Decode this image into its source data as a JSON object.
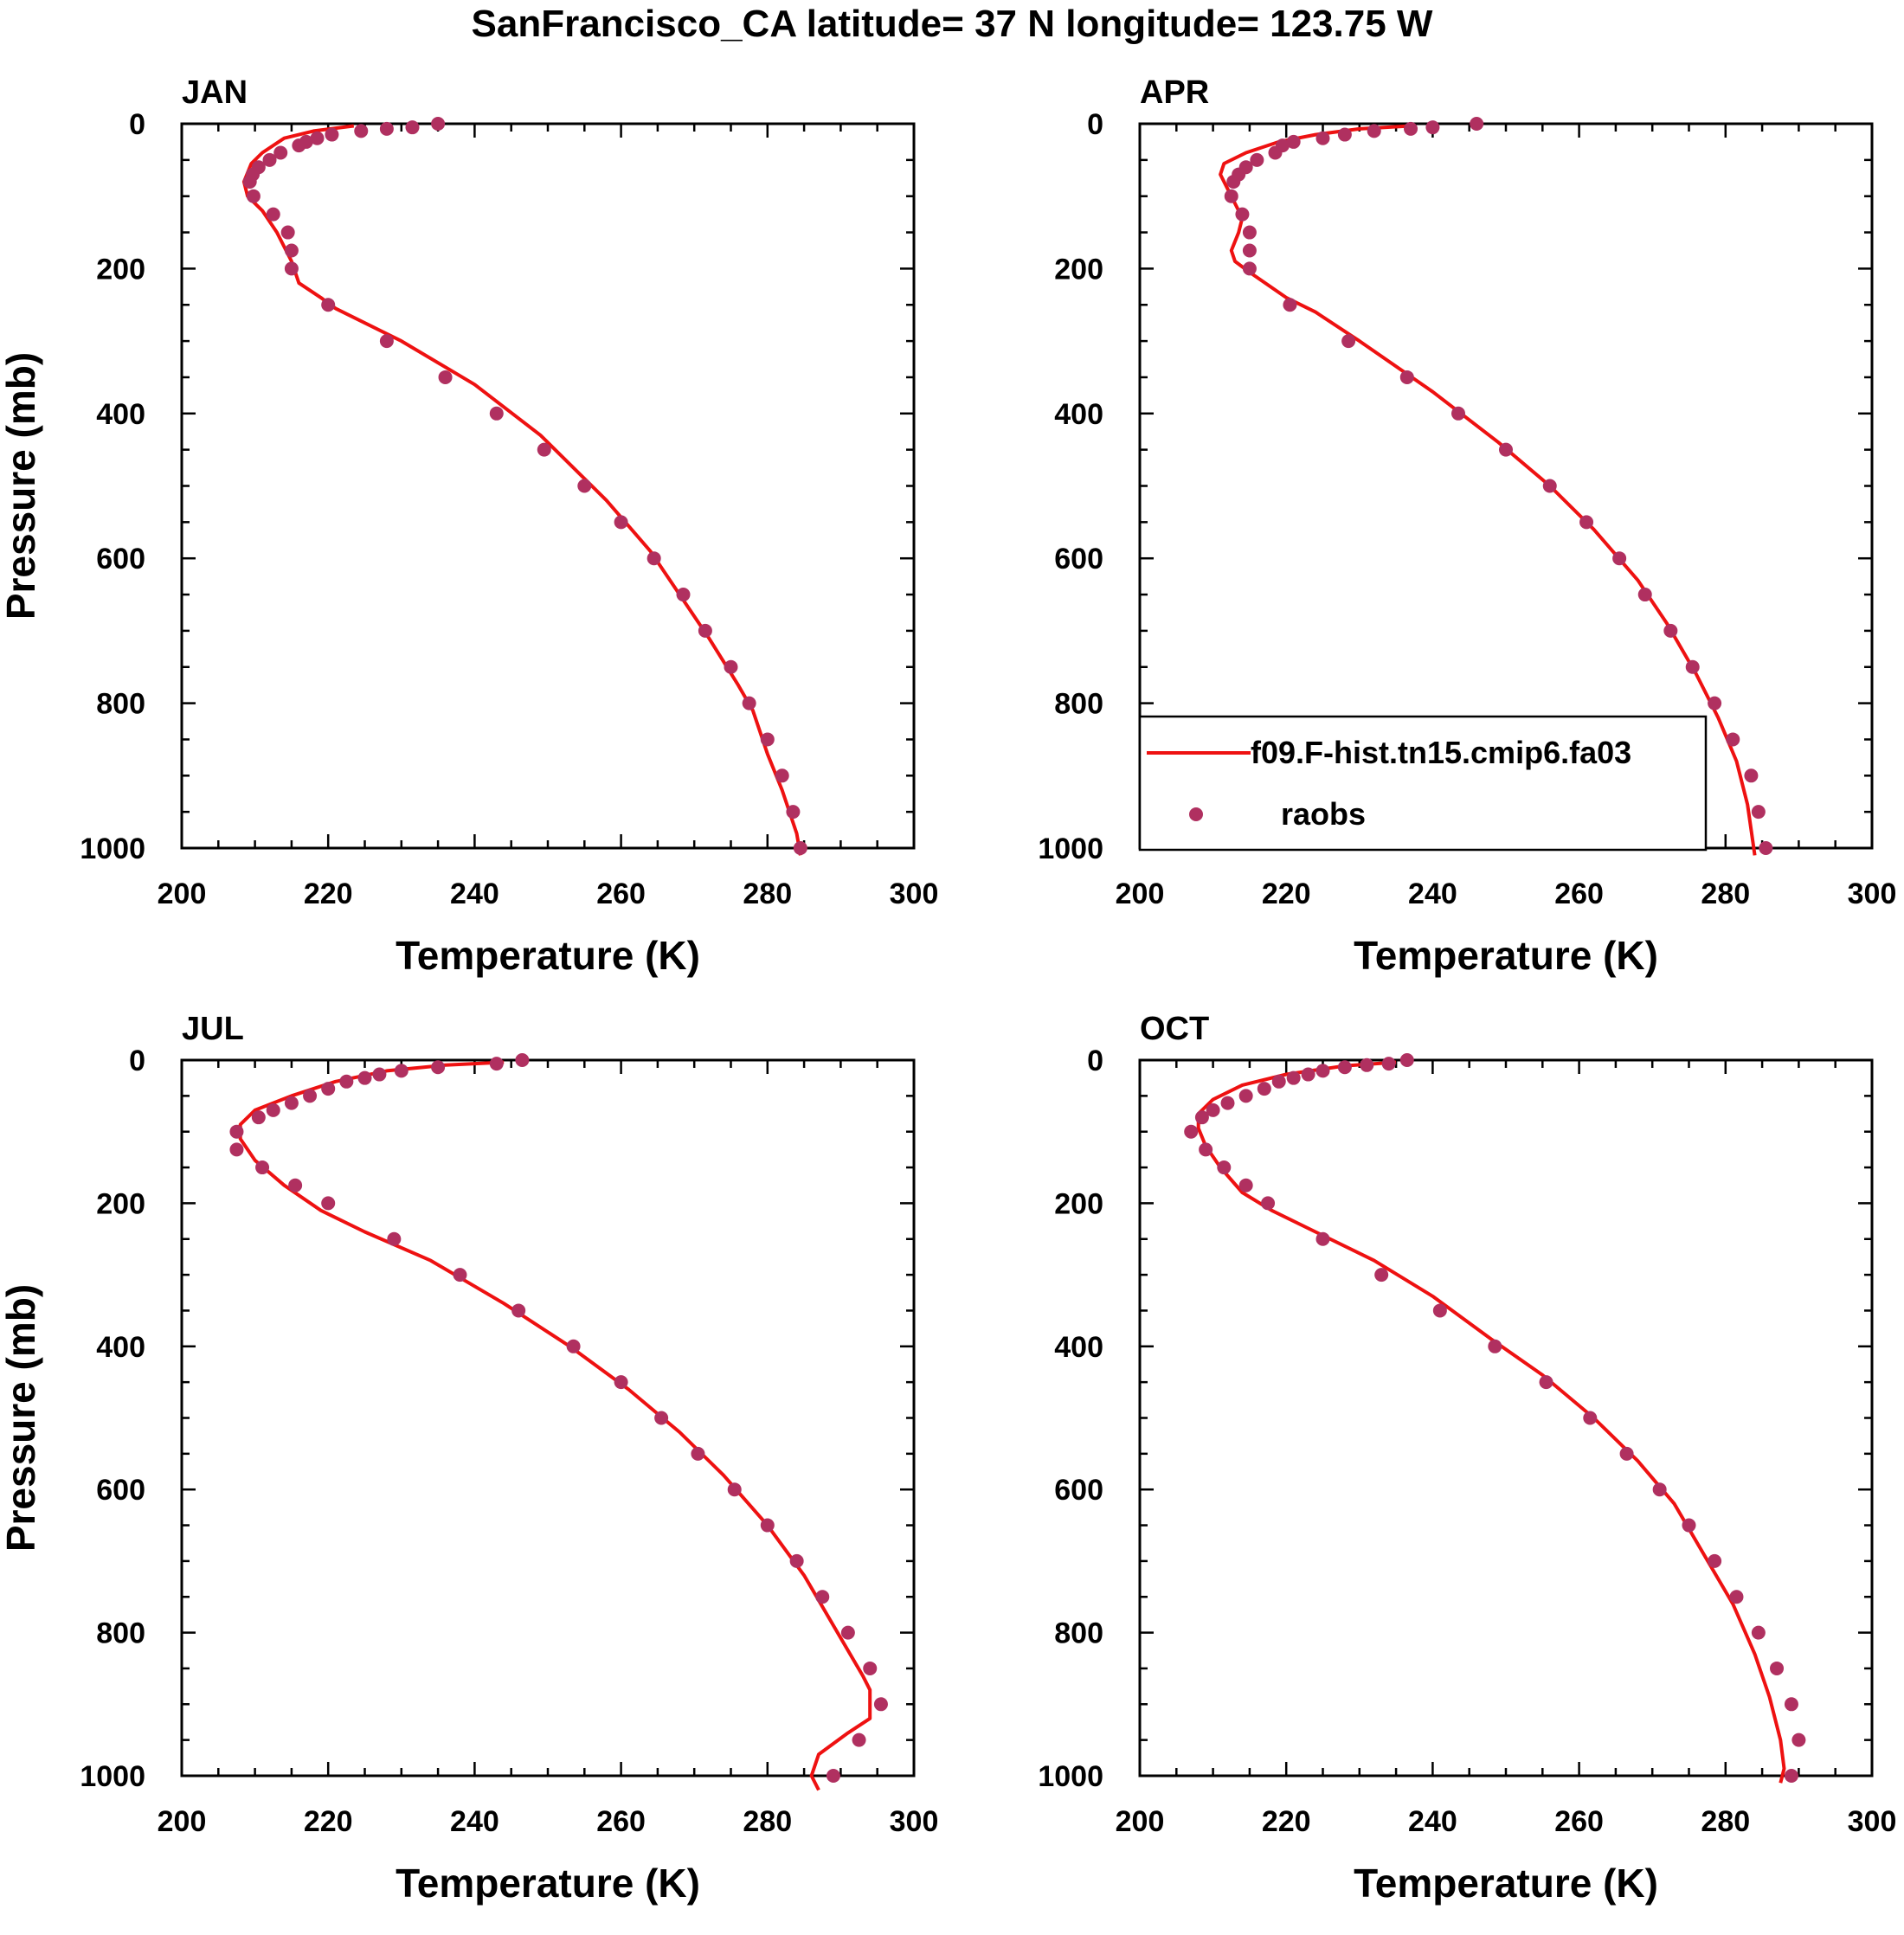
{
  "title": "SanFrancisco_CA  latitude= 37 N longitude= 123.75 W",
  "colors": {
    "model_line": "#ee1111",
    "obs_marker": "#b03060",
    "axes": "#000000"
  },
  "legend": {
    "placement": "inside APR panel, lower-left",
    "entries": [
      {
        "label": "f09.F-hist.tn15.cmip6.fa03",
        "symbol": "line"
      },
      {
        "label": "raobs",
        "symbol": "dot"
      }
    ]
  },
  "chart_data": [
    {
      "type": "line",
      "panel_title": "JAN",
      "xlabel": "Temperature (K)",
      "ylabel": "Pressure (mb)",
      "xlim": [
        200,
        300
      ],
      "ylim": [
        1000,
        0
      ],
      "y_inverted": true,
      "x_ticks": [
        "200",
        "220",
        "240",
        "260",
        "280",
        "300"
      ],
      "y_ticks": [
        "0",
        "200",
        "400",
        "600",
        "800",
        "1000"
      ],
      "series": [
        {
          "name": "f09.F-hist.tn15.cmip6.fa03",
          "kind": "line",
          "points": [
            [
              223.5,
              3
            ],
            [
              218,
              10
            ],
            [
              214,
              20
            ],
            [
              211,
              40
            ],
            [
              209.5,
              55
            ],
            [
              208.5,
              80
            ],
            [
              209,
              100
            ],
            [
              211,
              120
            ],
            [
              213,
              150
            ],
            [
              215,
              190
            ],
            [
              216,
              220
            ],
            [
              219,
              240
            ],
            [
              221,
              255
            ],
            [
              230,
              300
            ],
            [
              240,
              360
            ],
            [
              249,
              430
            ],
            [
              258,
              520
            ],
            [
              264,
              590
            ],
            [
              268,
              650
            ],
            [
              272,
              710
            ],
            [
              276,
              775
            ],
            [
              278,
              810
            ],
            [
              280,
              870
            ],
            [
              282,
              920
            ],
            [
              284,
              980
            ],
            [
              284.5,
              1010
            ]
          ]
        },
        {
          "name": "raobs",
          "kind": "scatter",
          "points": [
            [
              235,
              0
            ],
            [
              231.5,
              5
            ],
            [
              228,
              7
            ],
            [
              224.5,
              10
            ],
            [
              220.5,
              15
            ],
            [
              218.5,
              20
            ],
            [
              217,
              25
            ],
            [
              216,
              30
            ],
            [
              213.5,
              40
            ],
            [
              212,
              50
            ],
            [
              210.5,
              60
            ],
            [
              209.7,
              70
            ],
            [
              209.3,
              80
            ],
            [
              209.8,
              100
            ],
            [
              212.5,
              125
            ],
            [
              214.5,
              150
            ],
            [
              215,
              175
            ],
            [
              215,
              200
            ],
            [
              220,
              250
            ],
            [
              228,
              300
            ],
            [
              236,
              350
            ],
            [
              243,
              400
            ],
            [
              249.5,
              450
            ],
            [
              255,
              500
            ],
            [
              260,
              550
            ],
            [
              264.5,
              600
            ],
            [
              268.5,
              650
            ],
            [
              271.5,
              700
            ],
            [
              275,
              750
            ],
            [
              277.5,
              800
            ],
            [
              280,
              850
            ],
            [
              282,
              900
            ],
            [
              283.5,
              950
            ],
            [
              284.5,
              1000
            ]
          ]
        }
      ]
    },
    {
      "type": "line",
      "panel_title": "APR",
      "xlabel": "Temperature (K)",
      "ylabel": "",
      "xlim": [
        200,
        300
      ],
      "ylim": [
        1000,
        0
      ],
      "y_inverted": true,
      "x_ticks": [
        "200",
        "220",
        "240",
        "260",
        "280",
        "300"
      ],
      "y_ticks": [
        "0",
        "200",
        "400",
        "600",
        "800",
        "1000"
      ],
      "series": [
        {
          "name": "f09.F-hist.tn15.cmip6.fa03",
          "kind": "line",
          "points": [
            [
              237,
              3
            ],
            [
              230,
              7
            ],
            [
              224,
              15
            ],
            [
              219,
              25
            ],
            [
              214.5,
              40
            ],
            [
              211.5,
              55
            ],
            [
              211,
              70
            ],
            [
              212,
              90
            ],
            [
              213,
              110
            ],
            [
              214,
              130
            ],
            [
              213.5,
              150
            ],
            [
              212.5,
              175
            ],
            [
              213,
              190
            ],
            [
              215,
              205
            ],
            [
              220,
              240
            ],
            [
              224,
              260
            ],
            [
              230,
              300
            ],
            [
              240,
              370
            ],
            [
              249,
              440
            ],
            [
              256,
              500
            ],
            [
              262,
              560
            ],
            [
              268,
              630
            ],
            [
              272,
              690
            ],
            [
              276,
              760
            ],
            [
              279,
              820
            ],
            [
              281.5,
              880
            ],
            [
              283,
              940
            ],
            [
              284,
              1010
            ]
          ]
        },
        {
          "name": "raobs",
          "kind": "scatter",
          "points": [
            [
              246,
              0
            ],
            [
              240,
              5
            ],
            [
              237,
              7
            ],
            [
              232,
              10
            ],
            [
              228,
              15
            ],
            [
              225,
              20
            ],
            [
              221,
              25
            ],
            [
              219.5,
              30
            ],
            [
              218.5,
              40
            ],
            [
              216,
              50
            ],
            [
              214.5,
              60
            ],
            [
              213.5,
              70
            ],
            [
              212.8,
              80
            ],
            [
              212.5,
              100
            ],
            [
              214,
              125
            ],
            [
              215,
              150
            ],
            [
              215,
              175
            ],
            [
              215,
              200
            ],
            [
              220.5,
              250
            ],
            [
              228.5,
              300
            ],
            [
              236.5,
              350
            ],
            [
              243.5,
              400
            ],
            [
              250,
              450
            ],
            [
              256,
              500
            ],
            [
              261,
              550
            ],
            [
              265.5,
              600
            ],
            [
              269,
              650
            ],
            [
              272.5,
              700
            ],
            [
              275.5,
              750
            ],
            [
              278.5,
              800
            ],
            [
              281,
              850
            ],
            [
              283.5,
              900
            ],
            [
              284.5,
              950
            ],
            [
              285.5,
              1000
            ]
          ]
        }
      ]
    },
    {
      "type": "line",
      "panel_title": "JUL",
      "xlabel": "Temperature (K)",
      "ylabel": "Pressure (mb)",
      "xlim": [
        200,
        300
      ],
      "ylim": [
        1000,
        0
      ],
      "y_inverted": true,
      "x_ticks": [
        "200",
        "220",
        "240",
        "260",
        "280",
        "300"
      ],
      "y_ticks": [
        "0",
        "200",
        "400",
        "600",
        "800",
        "1000"
      ],
      "series": [
        {
          "name": "f09.F-hist.tn15.cmip6.fa03",
          "kind": "line",
          "points": [
            [
              244,
              3
            ],
            [
              236,
              7
            ],
            [
              228,
              15
            ],
            [
              221,
              30
            ],
            [
              215,
              50
            ],
            [
              210,
              70
            ],
            [
              208,
              90
            ],
            [
              208,
              110
            ],
            [
              210,
              140
            ],
            [
              214,
              175
            ],
            [
              219,
              210
            ],
            [
              225,
              240
            ],
            [
              234,
              280
            ],
            [
              244,
              340
            ],
            [
              253,
              400
            ],
            [
              261,
              460
            ],
            [
              268,
              520
            ],
            [
              274,
              580
            ],
            [
              280,
              650
            ],
            [
              285,
              720
            ],
            [
              289,
              790
            ],
            [
              293,
              860
            ],
            [
              294,
              880
            ],
            [
              294,
              920
            ],
            [
              291,
              940
            ],
            [
              287,
              970
            ],
            [
              286,
              1000
            ],
            [
              287,
              1020
            ]
          ]
        },
        {
          "name": "raobs",
          "kind": "scatter",
          "points": [
            [
              246.5,
              0
            ],
            [
              243,
              5
            ],
            [
              235,
              10
            ],
            [
              230,
              15
            ],
            [
              227,
              20
            ],
            [
              225,
              25
            ],
            [
              222.5,
              30
            ],
            [
              220,
              40
            ],
            [
              217.5,
              50
            ],
            [
              215,
              60
            ],
            [
              212.5,
              70
            ],
            [
              210.5,
              80
            ],
            [
              207.5,
              100
            ],
            [
              207.5,
              125
            ],
            [
              211,
              150
            ],
            [
              215.5,
              175
            ],
            [
              220,
              200
            ],
            [
              229,
              250
            ],
            [
              238,
              300
            ],
            [
              246,
              350
            ],
            [
              253.5,
              400
            ],
            [
              260,
              450
            ],
            [
              265.5,
              500
            ],
            [
              270.5,
              550
            ],
            [
              275.5,
              600
            ],
            [
              280,
              650
            ],
            [
              284,
              700
            ],
            [
              287.5,
              750
            ],
            [
              291,
              800
            ],
            [
              294,
              850
            ],
            [
              295.5,
              900
            ],
            [
              292.5,
              950
            ],
            [
              289,
              1000
            ]
          ]
        }
      ]
    },
    {
      "type": "line",
      "panel_title": "OCT",
      "xlabel": "Temperature (K)",
      "ylabel": "",
      "xlim": [
        200,
        300
      ],
      "ylim": [
        1000,
        0
      ],
      "y_inverted": true,
      "x_ticks": [
        "200",
        "220",
        "240",
        "260",
        "280",
        "300"
      ],
      "y_ticks": [
        "0",
        "200",
        "400",
        "600",
        "800",
        "1000"
      ],
      "series": [
        {
          "name": "f09.F-hist.tn15.cmip6.fa03",
          "kind": "line",
          "points": [
            [
              235,
              3
            ],
            [
              228,
              8
            ],
            [
              220,
              20
            ],
            [
              214,
              35
            ],
            [
              210,
              55
            ],
            [
              208,
              75
            ],
            [
              208,
              95
            ],
            [
              209,
              120
            ],
            [
              211,
              150
            ],
            [
              214,
              185
            ],
            [
              218,
              210
            ],
            [
              224,
              240
            ],
            [
              232,
              280
            ],
            [
              240,
              330
            ],
            [
              248,
              390
            ],
            [
              255,
              440
            ],
            [
              262,
              500
            ],
            [
              268,
              560
            ],
            [
              273,
              620
            ],
            [
              277,
              690
            ],
            [
              281,
              760
            ],
            [
              284,
              830
            ],
            [
              286,
              890
            ],
            [
              287.5,
              950
            ],
            [
              288,
              990
            ],
            [
              287.5,
              1010
            ]
          ]
        },
        {
          "name": "raobs",
          "kind": "scatter",
          "points": [
            [
              236.5,
              0
            ],
            [
              234,
              5
            ],
            [
              231,
              7
            ],
            [
              228,
              10
            ],
            [
              225,
              15
            ],
            [
              223,
              20
            ],
            [
              221,
              25
            ],
            [
              219,
              30
            ],
            [
              217,
              40
            ],
            [
              214.5,
              50
            ],
            [
              212,
              60
            ],
            [
              210,
              70
            ],
            [
              208.5,
              80
            ],
            [
              207,
              100
            ],
            [
              209,
              125
            ],
            [
              211.5,
              150
            ],
            [
              214.5,
              175
            ],
            [
              217.5,
              200
            ],
            [
              225,
              250
            ],
            [
              233,
              300
            ],
            [
              241,
              350
            ],
            [
              248.5,
              400
            ],
            [
              255.5,
              450
            ],
            [
              261.5,
              500
            ],
            [
              266.5,
              550
            ],
            [
              271,
              600
            ],
            [
              275,
              650
            ],
            [
              278.5,
              700
            ],
            [
              281.5,
              750
            ],
            [
              284.5,
              800
            ],
            [
              287,
              850
            ],
            [
              289,
              900
            ],
            [
              290,
              950
            ],
            [
              289,
              1000
            ]
          ]
        }
      ]
    }
  ]
}
